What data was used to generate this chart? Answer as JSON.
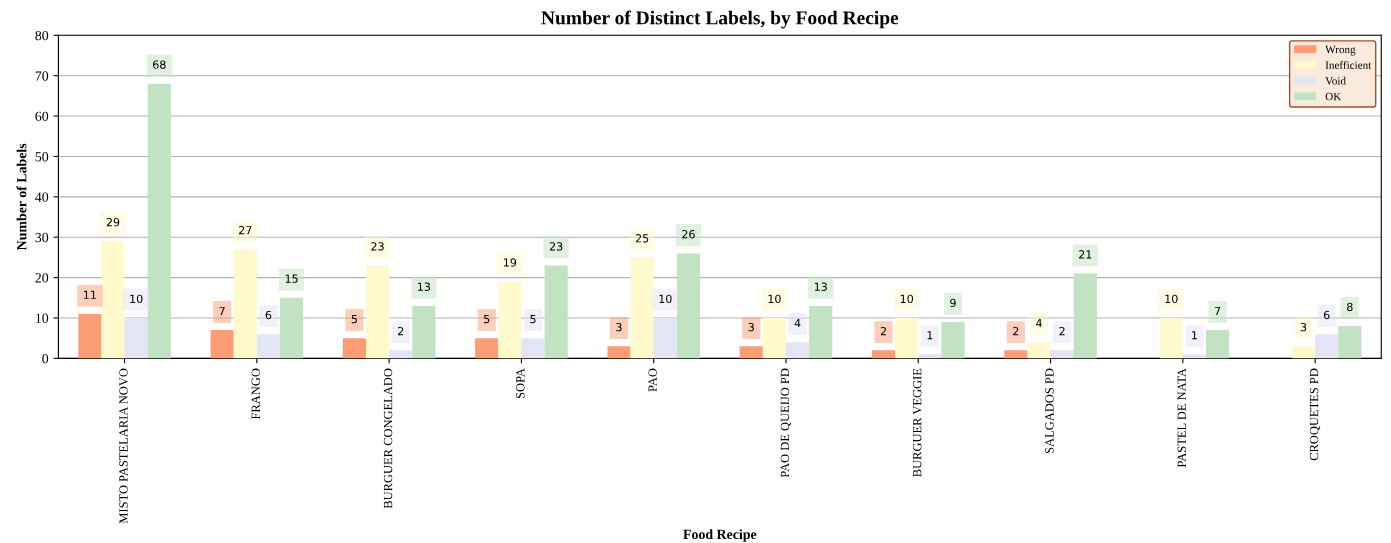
{
  "chart_data": {
    "type": "bar",
    "title": "Number of Distinct Labels, by Food Recipe",
    "xlabel": "Food Recipe",
    "ylabel": "Number of Labels",
    "categories": [
      "MISTO PASTELARIA NOVO",
      "FRANGO",
      "BURGUER CONGELADO",
      "SOPA",
      "PAO",
      "PAO DE QUEIJO PD",
      "BURGUER VEGGIE",
      "SALGADOS PD",
      "PASTEL DE NATA",
      "CROQUETES PD"
    ],
    "series": [
      {
        "name": "Wrong",
        "color": "#fc9d75",
        "values": [
          11,
          7,
          5,
          5,
          3,
          3,
          2,
          2,
          null,
          null
        ]
      },
      {
        "name": "Inefficient",
        "color": "#fff9cc",
        "values": [
          29,
          27,
          23,
          19,
          25,
          10,
          10,
          4,
          10,
          3
        ]
      },
      {
        "name": "Void",
        "color": "#e4e4f7",
        "values": [
          10,
          6,
          2,
          5,
          10,
          4,
          1,
          2,
          1,
          6
        ]
      },
      {
        "name": "OK",
        "color": "#c2e3c2",
        "values": [
          68,
          15,
          13,
          23,
          26,
          13,
          9,
          21,
          7,
          8
        ]
      }
    ],
    "ylim": [
      0,
      80
    ],
    "yticks": [
      0,
      10,
      20,
      30,
      40,
      50,
      60,
      70,
      80
    ],
    "grid": "y",
    "legend": "top right",
    "data_labels": true
  }
}
